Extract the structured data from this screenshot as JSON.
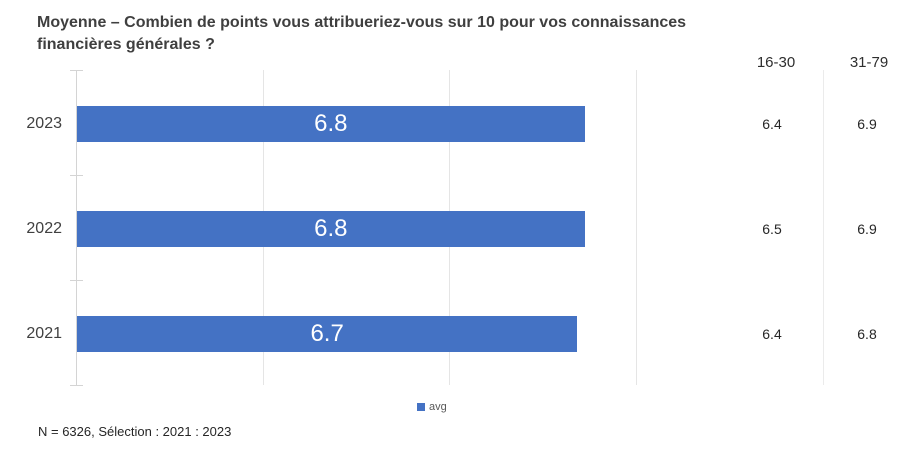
{
  "title": "Moyenne – Combien de points vous attribueriez-vous sur 10 pour vos connaissances financières générales ?",
  "footnote": "N = 6326, Sélection : 2021 : 2023",
  "colors": {
    "bar": "#4472C4",
    "title_text": "#3F3F3F",
    "axis_line": "#D4D4D4",
    "gridline": "#E5E5E5",
    "bar_label_text": "#FFFFFF"
  },
  "chart_data": {
    "type": "bar",
    "orientation": "horizontal",
    "title": "Moyenne – Combien de points vous attribueriez-vous sur 10 pour vos connaissances financières générales ?",
    "categories": [
      "2023",
      "2022",
      "2021"
    ],
    "series": [
      {
        "name": "avg",
        "role": "bars",
        "values": [
          6.8,
          6.8,
          6.7
        ]
      },
      {
        "name": "16-30",
        "role": "side-table-column",
        "values": [
          6.4,
          6.5,
          6.4
        ]
      },
      {
        "name": "31-79",
        "role": "side-table-column",
        "values": [
          6.9,
          6.9,
          6.8
        ]
      }
    ],
    "xlim": [
      0,
      7.5
    ],
    "gridlines": [
      2.5,
      5,
      7.5
    ],
    "grid": true,
    "bar_labels_shown": true,
    "legend_position": "bottom-center",
    "scale_note": "points sur 10"
  }
}
